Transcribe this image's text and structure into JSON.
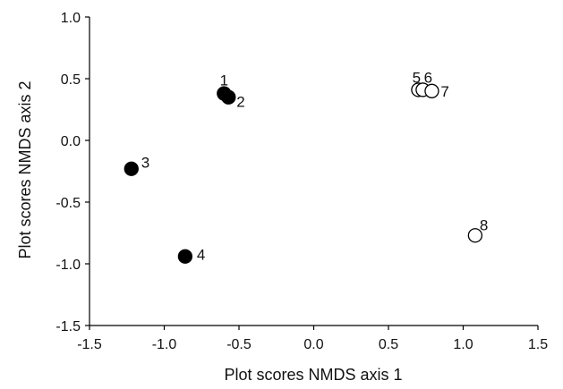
{
  "chart_data": {
    "type": "scatter",
    "title": "",
    "xlabel": "Plot scores NMDS axis 1",
    "ylabel": "Plot scores NMDS axis 2",
    "xlim": [
      -1.5,
      1.5
    ],
    "ylim": [
      -1.5,
      1.0
    ],
    "x_ticks": [
      -1.5,
      -1.0,
      -0.5,
      0.0,
      0.5,
      1.0,
      1.5
    ],
    "x_tick_labels": [
      "-1.5",
      "-1.0",
      "-0.5",
      "0.0",
      "0.5",
      "1.0",
      "1.5"
    ],
    "y_ticks": [
      -1.5,
      -1.0,
      -0.5,
      0.0,
      0.5,
      1.0
    ],
    "y_tick_labels": [
      "-1.5",
      "-1.0",
      "-0.5",
      "0.0",
      "0.5",
      "1.0"
    ],
    "grid": false,
    "legend": "none",
    "series": [
      {
        "marker": "filled-circle",
        "color": "#000000",
        "points": [
          {
            "label": "1",
            "x": -0.6,
            "y": 0.38
          },
          {
            "label": "2",
            "x": -0.57,
            "y": 0.35
          },
          {
            "label": "3",
            "x": -1.22,
            "y": -0.23
          },
          {
            "label": "4",
            "x": -0.86,
            "y": -0.94
          }
        ]
      },
      {
        "marker": "open-circle",
        "color": "#000000",
        "points": [
          {
            "label": "5",
            "x": 0.7,
            "y": 0.41
          },
          {
            "label": "6",
            "x": 0.73,
            "y": 0.41
          },
          {
            "label": "7",
            "x": 0.79,
            "y": 0.4
          },
          {
            "label": "8",
            "x": 1.08,
            "y": -0.77
          }
        ]
      }
    ]
  }
}
